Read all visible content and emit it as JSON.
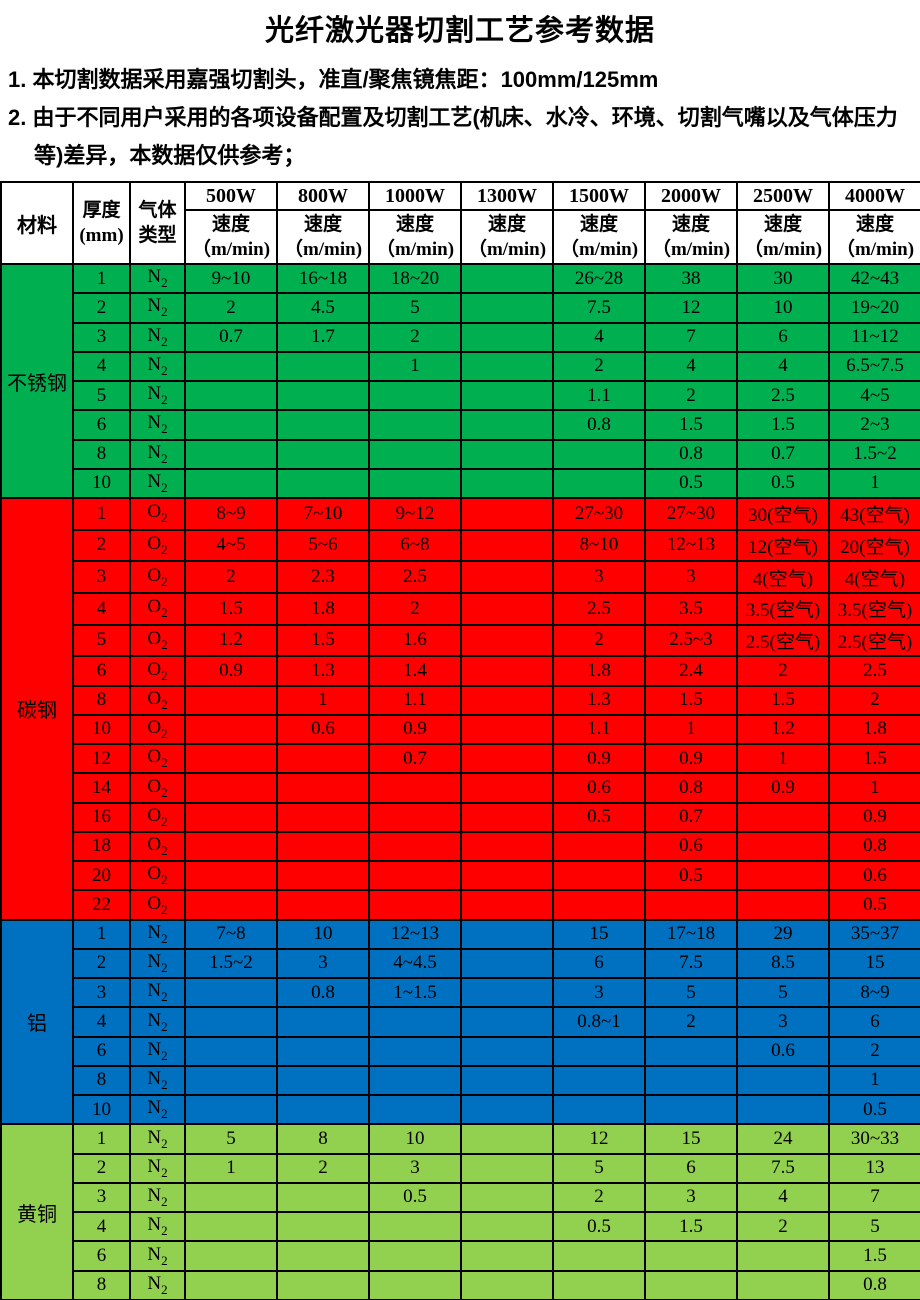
{
  "title": "光纤激光器切割工艺参考数据",
  "notes": [
    "1. 本切割数据采用嘉强切割头，准直/聚焦镜焦距：100mm/125mm",
    "2. 由于不同用户采用的各项设备配置及切割工艺(机床、水冷、环境、切割气嘴以及气体压力等)差异，本数据仅供参考；"
  ],
  "table": {
    "header": {
      "material": "材料",
      "thickness_line1": "厚度",
      "thickness_line2": "(mm)",
      "gas_line1": "气体",
      "gas_line2": "类型",
      "powers": [
        "500W",
        "800W",
        "1000W",
        "1300W",
        "1500W",
        "2000W",
        "2500W",
        "4000W"
      ],
      "speed_line1": "速度",
      "speed_line2": "（m/min)"
    },
    "sections": [
      {
        "material": "不锈钢",
        "color": "#00B050",
        "rows": [
          {
            "t": "1",
            "gas": "N2",
            "v": [
              "9~10",
              "16~18",
              "18~20",
              "",
              "26~28",
              "38",
              "30",
              "42~43"
            ]
          },
          {
            "t": "2",
            "gas": "N2",
            "v": [
              "2",
              "4.5",
              "5",
              "",
              "7.5",
              "12",
              "10",
              "19~20"
            ]
          },
          {
            "t": "3",
            "gas": "N2",
            "v": [
              "0.7",
              "1.7",
              "2",
              "",
              "4",
              "7",
              "6",
              "11~12"
            ]
          },
          {
            "t": "4",
            "gas": "N2",
            "v": [
              "",
              "",
              "1",
              "",
              "2",
              "4",
              "4",
              "6.5~7.5"
            ]
          },
          {
            "t": "5",
            "gas": "N2",
            "v": [
              "",
              "",
              "",
              "",
              "1.1",
              "2",
              "2.5",
              "4~5"
            ]
          },
          {
            "t": "6",
            "gas": "N2",
            "v": [
              "",
              "",
              "",
              "",
              "0.8",
              "1.5",
              "1.5",
              "2~3"
            ]
          },
          {
            "t": "8",
            "gas": "N2",
            "v": [
              "",
              "",
              "",
              "",
              "",
              "0.8",
              "0.7",
              "1.5~2"
            ]
          },
          {
            "t": "10",
            "gas": "N2",
            "v": [
              "",
              "",
              "",
              "",
              "",
              "0.5",
              "0.5",
              "1"
            ]
          }
        ]
      },
      {
        "material": "碳钢",
        "color": "#FF0000",
        "rows": [
          {
            "t": "1",
            "gas": "O2",
            "v": [
              "8~9",
              "7~10",
              "9~12",
              "",
              "27~30",
              "27~30",
              "30(空气)",
              "43(空气)"
            ]
          },
          {
            "t": "2",
            "gas": "O2",
            "v": [
              "4~5",
              "5~6",
              "6~8",
              "",
              "8~10",
              "12~13",
              "12(空气)",
              "20(空气)"
            ]
          },
          {
            "t": "3",
            "gas": "O2",
            "v": [
              "2",
              "2.3",
              "2.5",
              "",
              "3",
              "3",
              "4(空气)",
              "4(空气)"
            ]
          },
          {
            "t": "4",
            "gas": "O2",
            "v": [
              "1.5",
              "1.8",
              "2",
              "",
              "2.5",
              "3.5",
              "3.5(空气)",
              "3.5(空气)"
            ]
          },
          {
            "t": "5",
            "gas": "O2",
            "v": [
              "1.2",
              "1.5",
              "1.6",
              "",
              "2",
              "2.5~3",
              "2.5(空气)",
              "2.5(空气)"
            ]
          },
          {
            "t": "6",
            "gas": "O2",
            "v": [
              "0.9",
              "1.3",
              "1.4",
              "",
              "1.8",
              "2.4",
              "2",
              "2.5"
            ]
          },
          {
            "t": "8",
            "gas": "O2",
            "v": [
              "",
              "1",
              "1.1",
              "",
              "1.3",
              "1.5",
              "1.5",
              "2"
            ]
          },
          {
            "t": "10",
            "gas": "O2",
            "v": [
              "",
              "0.6",
              "0.9",
              "",
              "1.1",
              "1",
              "1.2",
              "1.8"
            ]
          },
          {
            "t": "12",
            "gas": "O2",
            "v": [
              "",
              "",
              "0.7",
              "",
              "0.9",
              "0.9",
              "1",
              "1.5"
            ]
          },
          {
            "t": "14",
            "gas": "O2",
            "v": [
              "",
              "",
              "",
              "",
              "0.6",
              "0.8",
              "0.9",
              "1"
            ]
          },
          {
            "t": "16",
            "gas": "O2",
            "v": [
              "",
              "",
              "",
              "",
              "0.5",
              "0.7",
              "",
              "0.9"
            ]
          },
          {
            "t": "18",
            "gas": "O2",
            "v": [
              "",
              "",
              "",
              "",
              "",
              "0.6",
              "",
              "0.8"
            ]
          },
          {
            "t": "20",
            "gas": "O2",
            "v": [
              "",
              "",
              "",
              "",
              "",
              "0.5",
              "",
              "0.6"
            ]
          },
          {
            "t": "22",
            "gas": "O2",
            "v": [
              "",
              "",
              "",
              "",
              "",
              "",
              "",
              "0.5"
            ]
          }
        ]
      },
      {
        "material": "铝",
        "color": "#0070C0",
        "rows": [
          {
            "t": "1",
            "gas": "N2",
            "v": [
              "7~8",
              "10",
              "12~13",
              "",
              "15",
              "17~18",
              "29",
              "35~37"
            ]
          },
          {
            "t": "2",
            "gas": "N2",
            "v": [
              "1.5~2",
              "3",
              "4~4.5",
              "",
              "6",
              "7.5",
              "8.5",
              "15"
            ]
          },
          {
            "t": "3",
            "gas": "N2",
            "v": [
              "",
              "0.8",
              "1~1.5",
              "",
              "3",
              "5",
              "5",
              "8~9"
            ]
          },
          {
            "t": "4",
            "gas": "N2",
            "v": [
              "",
              "",
              "",
              "",
              "0.8~1",
              "2",
              "3",
              "6"
            ]
          },
          {
            "t": "6",
            "gas": "N2",
            "v": [
              "",
              "",
              "",
              "",
              "",
              "",
              "0.6",
              "2"
            ]
          },
          {
            "t": "8",
            "gas": "N2",
            "v": [
              "",
              "",
              "",
              "",
              "",
              "",
              "",
              "1"
            ]
          },
          {
            "t": "10",
            "gas": "N2",
            "v": [
              "",
              "",
              "",
              "",
              "",
              "",
              "",
              "0.5"
            ]
          }
        ]
      },
      {
        "material": "黄铜",
        "color": "#92D050",
        "rows": [
          {
            "t": "1",
            "gas": "N2",
            "v": [
              "5",
              "8",
              "10",
              "",
              "12",
              "15",
              "24",
              "30~33"
            ]
          },
          {
            "t": "2",
            "gas": "N2",
            "v": [
              "1",
              "2",
              "3",
              "",
              "5",
              "6",
              "7.5",
              "13"
            ]
          },
          {
            "t": "3",
            "gas": "N2",
            "v": [
              "",
              "",
              "0.5",
              "",
              "2",
              "3",
              "4",
              "7"
            ]
          },
          {
            "t": "4",
            "gas": "N2",
            "v": [
              "",
              "",
              "",
              "",
              "0.5",
              "1.5",
              "2",
              "5"
            ]
          },
          {
            "t": "6",
            "gas": "N2",
            "v": [
              "",
              "",
              "",
              "",
              "",
              "",
              "",
              "1.5"
            ]
          },
          {
            "t": "8",
            "gas": "N2",
            "v": [
              "",
              "",
              "",
              "",
              "",
              "",
              "",
              "0.8"
            ]
          }
        ]
      }
    ]
  }
}
